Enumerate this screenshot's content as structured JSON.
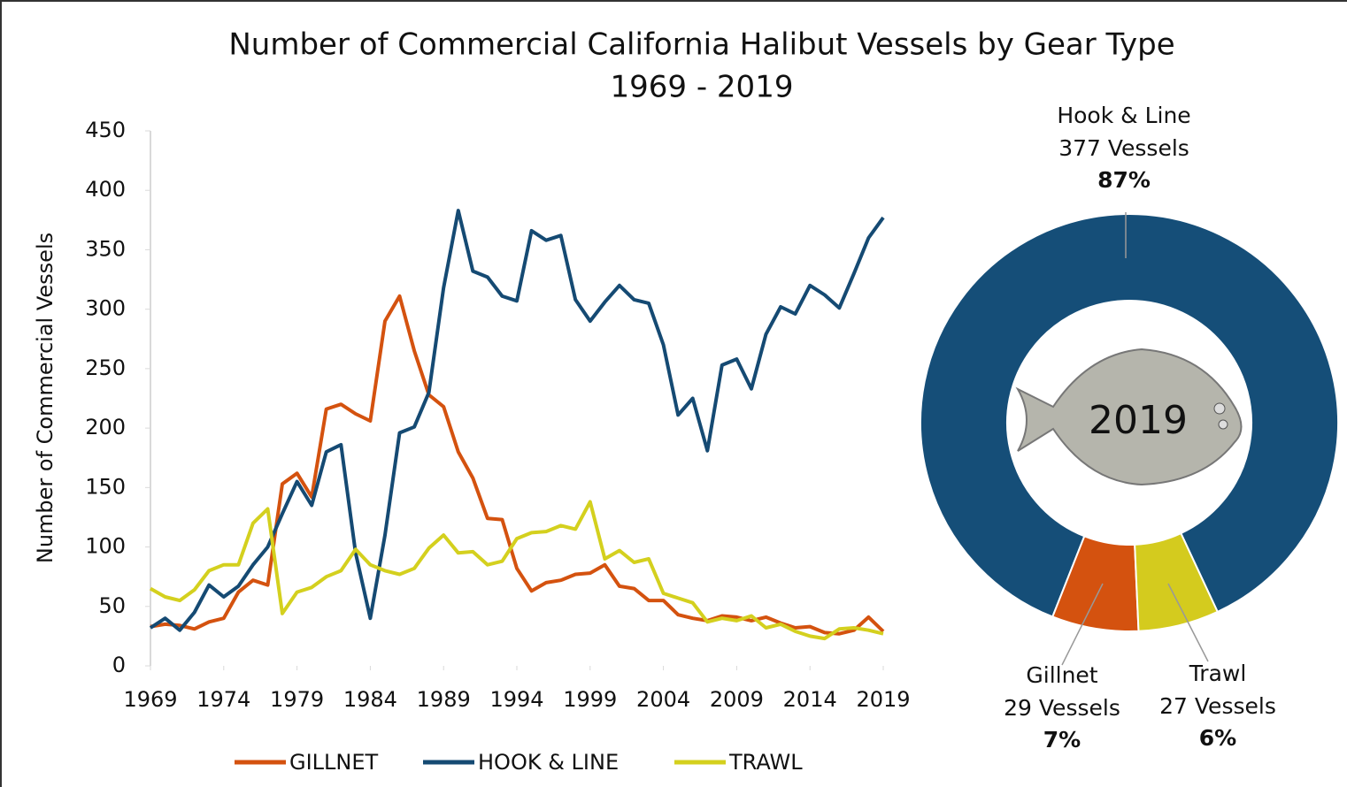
{
  "title": "Number of Commercial California Halibut Vessels by Gear Type",
  "subtitle": "1969 - 2019",
  "chart_data": [
    {
      "type": "line",
      "ylabel": "Number of Commercial Vessels",
      "x": [
        1969,
        1970,
        1971,
        1972,
        1973,
        1974,
        1975,
        1976,
        1977,
        1978,
        1979,
        1980,
        1981,
        1982,
        1983,
        1984,
        1985,
        1986,
        1987,
        1988,
        1989,
        1990,
        1991,
        1992,
        1993,
        1994,
        1995,
        1996,
        1997,
        1998,
        1999,
        2000,
        2001,
        2002,
        2003,
        2004,
        2005,
        2006,
        2007,
        2008,
        2009,
        2010,
        2011,
        2012,
        2013,
        2014,
        2015,
        2016,
        2017,
        2018,
        2019
      ],
      "xlim": [
        1969,
        2019
      ],
      "xticks": [
        1969,
        1974,
        1979,
        1984,
        1989,
        1994,
        1999,
        2004,
        2009,
        2014,
        2019
      ],
      "ylim": [
        0,
        450
      ],
      "yticks": [
        0,
        50,
        100,
        150,
        200,
        250,
        300,
        350,
        400,
        450
      ],
      "series": [
        {
          "name": "GILLNET",
          "color": "#d4520f",
          "values": [
            33,
            35,
            34,
            31,
            37,
            40,
            62,
            72,
            68,
            153,
            162,
            142,
            216,
            220,
            212,
            206,
            290,
            311,
            265,
            228,
            218,
            180,
            158,
            124,
            123,
            82,
            63,
            70,
            72,
            77,
            78,
            85,
            67,
            65,
            55,
            55,
            43,
            40,
            38,
            42,
            41,
            38,
            41,
            36,
            32,
            33,
            28,
            27,
            30,
            41,
            29
          ]
        },
        {
          "name": "HOOK & LINE",
          "color": "#154a73",
          "values": [
            32,
            40,
            30,
            45,
            68,
            58,
            67,
            85,
            100,
            128,
            155,
            135,
            180,
            186,
            95,
            40,
            110,
            196,
            201,
            230,
            318,
            383,
            332,
            327,
            311,
            307,
            366,
            358,
            362,
            308,
            290,
            306,
            320,
            308,
            305,
            270,
            211,
            225,
            181,
            253,
            258,
            233,
            279,
            302,
            296,
            320,
            312,
            301,
            330,
            360,
            377
          ]
        },
        {
          "name": "TRAWL",
          "color": "#d4d01e",
          "values": [
            65,
            58,
            55,
            64,
            80,
            85,
            85,
            120,
            132,
            44,
            62,
            66,
            75,
            80,
            98,
            85,
            80,
            77,
            82,
            99,
            110,
            95,
            96,
            85,
            88,
            107,
            112,
            113,
            118,
            115,
            138,
            90,
            97,
            87,
            90,
            61,
            57,
            53,
            37,
            40,
            38,
            42,
            32,
            35,
            29,
            25,
            23,
            31,
            32,
            30,
            27
          ]
        }
      ]
    },
    {
      "type": "donut",
      "center_label": "2019",
      "categories": [
        "Hook & Line",
        "Gillnet",
        "Trawl"
      ],
      "values": [
        377,
        29,
        27
      ],
      "value_labels": [
        "377 Vessels",
        "29 Vessels",
        "27 Vessels"
      ],
      "percent_labels": [
        "87%",
        "7%",
        "6%"
      ],
      "colors": [
        "#154e78",
        "#d4520f",
        "#d4cb1e"
      ]
    }
  ]
}
